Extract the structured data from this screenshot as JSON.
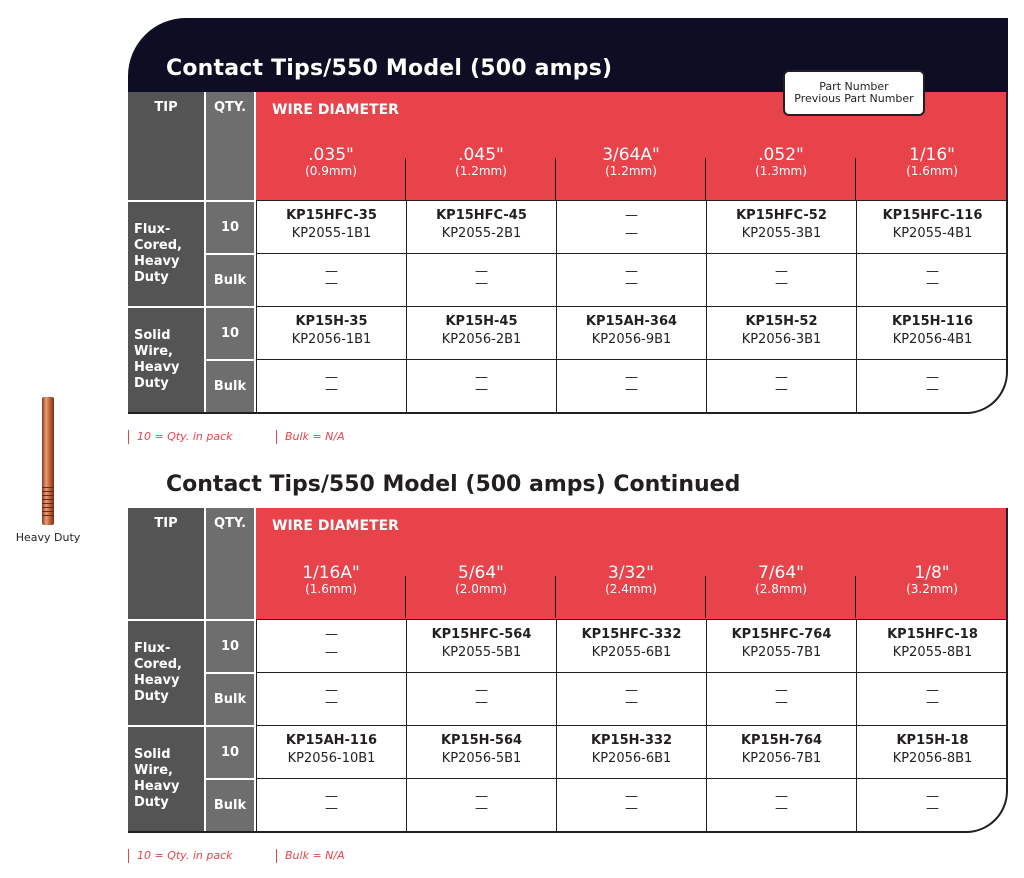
{
  "side": {
    "caption": "Heavy Duty"
  },
  "legend": {
    "line1": "Part Number",
    "line2": "Previous Part Number"
  },
  "headers": {
    "tip": "TIP",
    "qty": "QTY.",
    "wire": "WIRE DIAMETER"
  },
  "notes": {
    "pack": "10 = Qty. in pack",
    "bulk": "Bulk = N/A"
  },
  "colors": {
    "title_bar": "#0d0d24",
    "red": "#e8434b",
    "gray_dark": "#545454",
    "gray_mid": "#6e6e6e"
  },
  "tables": [
    {
      "title": "Contact Tips/550 Model (500 amps)",
      "diameters": [
        {
          "v": ".035\"",
          "m": "(0.9mm)"
        },
        {
          "v": ".045\"",
          "m": "(1.2mm)"
        },
        {
          "v": "3/64A\"",
          "m": "(1.2mm)"
        },
        {
          "v": ".052\"",
          "m": "(1.3mm)"
        },
        {
          "v": "1/16\"",
          "m": "(1.6mm)"
        }
      ],
      "groups": [
        {
          "label": "Flux-\nCored,\nHeavy\nDuty",
          "rows": [
            {
              "qty": "10",
              "cells": [
                {
                  "pn": "KP15HFC-35",
                  "pp": "KP2055-1B1"
                },
                {
                  "pn": "KP15HFC-45",
                  "pp": "KP2055-2B1"
                },
                {
                  "pn": "—",
                  "pp": "—"
                },
                {
                  "pn": "KP15HFC-52",
                  "pp": "KP2055-3B1"
                },
                {
                  "pn": "KP15HFC-116",
                  "pp": "KP2055-4B1"
                }
              ]
            },
            {
              "qty": "Bulk",
              "cells": [
                {
                  "pn": "—",
                  "pp": "—"
                },
                {
                  "pn": "—",
                  "pp": "—"
                },
                {
                  "pn": "—",
                  "pp": "—"
                },
                {
                  "pn": "—",
                  "pp": "—"
                },
                {
                  "pn": "—",
                  "pp": "—"
                }
              ]
            }
          ]
        },
        {
          "label": "Solid\nWire,\nHeavy\nDuty",
          "rows": [
            {
              "qty": "10",
              "cells": [
                {
                  "pn": "KP15H-35",
                  "pp": "KP2056-1B1"
                },
                {
                  "pn": "KP15H-45",
                  "pp": "KP2056-2B1"
                },
                {
                  "pn": "KP15AH-364",
                  "pp": "KP2056-9B1"
                },
                {
                  "pn": "KP15H-52",
                  "pp": "KP2056-3B1"
                },
                {
                  "pn": "KP15H-116",
                  "pp": "KP2056-4B1"
                }
              ]
            },
            {
              "qty": "Bulk",
              "cells": [
                {
                  "pn": "—",
                  "pp": "—"
                },
                {
                  "pn": "—",
                  "pp": "—"
                },
                {
                  "pn": "—",
                  "pp": "—"
                },
                {
                  "pn": "—",
                  "pp": "—"
                },
                {
                  "pn": "—",
                  "pp": "—"
                }
              ]
            }
          ]
        }
      ]
    },
    {
      "title": "Contact Tips/550 Model (500 amps) Continued",
      "diameters": [
        {
          "v": "1/16A\"",
          "m": "(1.6mm)"
        },
        {
          "v": "5/64\"",
          "m": "(2.0mm)"
        },
        {
          "v": "3/32\"",
          "m": "(2.4mm)"
        },
        {
          "v": "7/64\"",
          "m": "(2.8mm)"
        },
        {
          "v": "1/8\"",
          "m": "(3.2mm)"
        }
      ],
      "groups": [
        {
          "label": "Flux-\nCored,\nHeavy\nDuty",
          "rows": [
            {
              "qty": "10",
              "cells": [
                {
                  "pn": "—",
                  "pp": "—"
                },
                {
                  "pn": "KP15HFC-564",
                  "pp": "KP2055-5B1"
                },
                {
                  "pn": "KP15HFC-332",
                  "pp": "KP2055-6B1"
                },
                {
                  "pn": "KP15HFC-764",
                  "pp": "KP2055-7B1"
                },
                {
                  "pn": "KP15HFC-18",
                  "pp": "KP2055-8B1"
                }
              ]
            },
            {
              "qty": "Bulk",
              "cells": [
                {
                  "pn": "—",
                  "pp": "—"
                },
                {
                  "pn": "—",
                  "pp": "—"
                },
                {
                  "pn": "—",
                  "pp": "—"
                },
                {
                  "pn": "—",
                  "pp": "—"
                },
                {
                  "pn": "—",
                  "pp": "—"
                }
              ]
            }
          ]
        },
        {
          "label": "Solid\nWire,\nHeavy\nDuty",
          "rows": [
            {
              "qty": "10",
              "cells": [
                {
                  "pn": "KP15AH-116",
                  "pp": "KP2056-10B1"
                },
                {
                  "pn": "KP15H-564",
                  "pp": "KP2056-5B1"
                },
                {
                  "pn": "KP15H-332",
                  "pp": "KP2056-6B1"
                },
                {
                  "pn": "KP15H-764",
                  "pp": "KP2056-7B1"
                },
                {
                  "pn": "KP15H-18",
                  "pp": "KP2056-8B1"
                }
              ]
            },
            {
              "qty": "Bulk",
              "cells": [
                {
                  "pn": "—",
                  "pp": "—"
                },
                {
                  "pn": "—",
                  "pp": "—"
                },
                {
                  "pn": "—",
                  "pp": "—"
                },
                {
                  "pn": "—",
                  "pp": "—"
                },
                {
                  "pn": "—",
                  "pp": "—"
                }
              ]
            }
          ]
        }
      ]
    }
  ]
}
